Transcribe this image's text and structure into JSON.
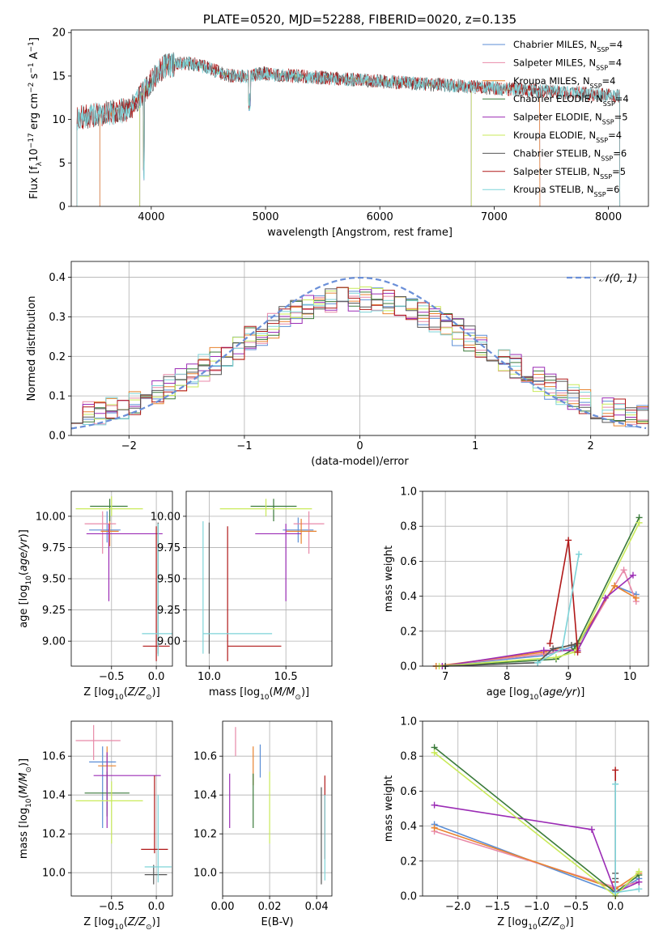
{
  "chart_data": [
    {
      "id": "spectrum",
      "type": "line",
      "title": "PLATE=0520, MJD=52288, FIBERID=0020, z=0.135",
      "xlabel": "wavelength [Angstrom, rest frame]",
      "ylabel": "Flux [f_λ 10^-17 erg cm^-2 s^-1 A^-1]",
      "xlim": [
        3300,
        8350
      ],
      "ylim": [
        0,
        20.3
      ],
      "xticks": [
        4000,
        5000,
        6000,
        7000,
        8000
      ],
      "yticks": [
        0,
        5,
        10,
        15,
        20
      ],
      "legend_position": "upper right",
      "grid": false,
      "series": [
        {
          "name": "Chabrier MILES, N_SSP=4",
          "color": "#5b8ed6",
          "seed": 11,
          "x_range": [
            3550,
            7400
          ]
        },
        {
          "name": "Salpeter MILES, N_SSP=4",
          "color": "#e889a8",
          "seed": 12,
          "x_range": [
            3550,
            7400
          ]
        },
        {
          "name": "Kroupa MILES, N_SSP=4",
          "color": "#e8832e",
          "seed": 13,
          "x_range": [
            3550,
            7400
          ]
        },
        {
          "name": "Chabrier ELODIE, N_SSP=4",
          "color": "#3a7a3a",
          "seed": 14,
          "x_range": [
            3900,
            6800
          ]
        },
        {
          "name": "Salpeter ELODIE, N_SSP=5",
          "color": "#9b2cb5",
          "seed": 15,
          "x_range": [
            3900,
            6800
          ]
        },
        {
          "name": "Kroupa ELODIE, N_SSP=4",
          "color": "#c9ea5a",
          "seed": 16,
          "x_range": [
            3900,
            6800
          ]
        },
        {
          "name": "Chabrier STELIB, N_SSP=6",
          "color": "#555555",
          "seed": 17,
          "x_range": [
            3350,
            8100
          ]
        },
        {
          "name": "Salpeter STELIB, N_SSP=5",
          "color": "#b01818",
          "seed": 18,
          "x_range": [
            3350,
            8100
          ]
        },
        {
          "name": "Kroupa STELIB, N_SSP=6",
          "color": "#7dd3d8",
          "seed": 19,
          "x_range": [
            3350,
            8100
          ]
        }
      ]
    },
    {
      "id": "residuals",
      "type": "histogram",
      "xlabel": "(data-model)/error",
      "ylabel": "Normed distribution",
      "xlim": [
        -2.5,
        2.5
      ],
      "ylim": [
        0,
        0.44
      ],
      "xticks": [
        -2,
        -1,
        0,
        1,
        2
      ],
      "yticks": [
        0.0,
        0.1,
        0.2,
        0.3,
        0.4
      ],
      "grid": true,
      "bin_width": 0.1,
      "legend": [
        {
          "name": "𝒩(0, 1)",
          "color": "#6a8fd8",
          "style": "dashed"
        }
      ],
      "series_colors": [
        "#5b8ed6",
        "#e889a8",
        "#e8832e",
        "#3a7a3a",
        "#9b2cb5",
        "#c9ea5a",
        "#7dd3d8",
        "#b01818",
        "#555555"
      ]
    },
    {
      "id": "age_vs_Z",
      "type": "errorbar",
      "xlabel": "Z [log10(Z/Z⊙)]",
      "ylabel": "age  [log10(age/yr)]",
      "xlim": [
        -0.95,
        0.18
      ],
      "ylim": [
        8.8,
        10.2
      ],
      "xticks": [
        -0.5,
        0.0
      ],
      "yticks": [
        9.0,
        9.25,
        9.5,
        9.75,
        10.0
      ],
      "grid": true,
      "points": [
        {
          "color": "#5b8ed6",
          "x": -0.55,
          "xerr": [
            0.2,
            0.15
          ],
          "y": 9.89,
          "yerr": [
            0.1,
            0.15
          ]
        },
        {
          "color": "#e889a8",
          "x": -0.6,
          "xerr": [
            0.2,
            0.15
          ],
          "y": 9.94,
          "yerr": [
            0.24,
            0.1
          ]
        },
        {
          "color": "#e8832e",
          "x": -0.52,
          "xerr": [
            0.1,
            0.1
          ],
          "y": 9.88,
          "yerr": [
            0.12,
            0.12
          ]
        },
        {
          "color": "#3a7a3a",
          "x": -0.52,
          "xerr": [
            0.22,
            0.2
          ],
          "y": 10.08,
          "yerr": [
            0.12,
            0.06
          ]
        },
        {
          "color": "#9b2cb5",
          "x": -0.53,
          "xerr": [
            0.25,
            0.6
          ],
          "y": 9.86,
          "yerr": [
            0.54,
            0.08
          ]
        },
        {
          "color": "#c9ea5a",
          "x": -0.5,
          "xerr": [
            0.4,
            0.35
          ],
          "y": 10.06,
          "yerr": [
            0.06,
            0.1
          ]
        },
        {
          "color": "#555555",
          "x": 0.02,
          "xerr": [
            0.0,
            0.0
          ],
          "y": 9.85,
          "yerr": [
            0.95,
            0.1
          ]
        },
        {
          "color": "#b01818",
          "x": 0.0,
          "xerr": [
            0.15,
            0.15
          ],
          "y": 8.96,
          "yerr": [
            0.12,
            0.96
          ]
        },
        {
          "color": "#7dd3d8",
          "x": 0.02,
          "xerr": [
            0.18,
            0.16
          ],
          "y": 9.06,
          "yerr": [
            0.18,
            0.88
          ]
        }
      ]
    },
    {
      "id": "age_vs_mass",
      "type": "errorbar",
      "xlabel": "mass [log10(M/M⊙)]",
      "ylabel": "",
      "xlim": [
        9.85,
        10.8
      ],
      "ylim": [
        8.8,
        10.2
      ],
      "xticks": [
        10.0,
        10.5
      ],
      "yticks": [
        9.0,
        9.25,
        9.5,
        9.75,
        10.0
      ],
      "grid": true,
      "points": [
        {
          "color": "#5b8ed6",
          "x": 10.58,
          "xerr": [
            0.1,
            0.1
          ],
          "y": 9.89,
          "yerr": [
            0.1,
            0.1
          ]
        },
        {
          "color": "#e889a8",
          "x": 10.65,
          "xerr": [
            0.1,
            0.1
          ],
          "y": 9.94,
          "yerr": [
            0.24,
            0.1
          ]
        },
        {
          "color": "#e8832e",
          "x": 10.6,
          "xerr": [
            0.1,
            0.1
          ],
          "y": 9.88,
          "yerr": [
            0.1,
            0.1
          ]
        },
        {
          "color": "#3a7a3a",
          "x": 10.42,
          "xerr": [
            0.15,
            0.15
          ],
          "y": 10.08,
          "yerr": [
            0.12,
            0.06
          ]
        },
        {
          "color": "#9b2cb5",
          "x": 10.5,
          "xerr": [
            0.2,
            0.1
          ],
          "y": 9.86,
          "yerr": [
            0.54,
            0.08
          ]
        },
        {
          "color": "#c9ea5a",
          "x": 10.37,
          "xerr": [
            0.3,
            0.3
          ],
          "y": 10.06,
          "yerr": [
            0.06,
            0.08
          ]
        },
        {
          "color": "#555555",
          "x": 10.0,
          "xerr": [
            0.0,
            0.0
          ],
          "y": 9.95,
          "yerr": [
            1.05,
            0.0
          ]
        },
        {
          "color": "#b01818",
          "x": 10.12,
          "xerr": [
            0.0,
            0.35
          ],
          "y": 8.96,
          "yerr": [
            0.12,
            0.96
          ]
        },
        {
          "color": "#7dd3d8",
          "x": 9.96,
          "xerr": [
            0.0,
            0.45
          ],
          "y": 9.06,
          "yerr": [
            0.16,
            0.9
          ]
        }
      ]
    },
    {
      "id": "weight_vs_age",
      "type": "line",
      "xlabel": "age  [log10(age/yr)]",
      "ylabel": "mass weight",
      "xlim": [
        6.63,
        10.3
      ],
      "ylim": [
        0,
        1.0
      ],
      "xticks": [
        7,
        8,
        9,
        10
      ],
      "yticks": [
        0.0,
        0.2,
        0.4,
        0.6,
        0.8,
        1.0
      ],
      "grid": true,
      "series": [
        {
          "color": "#5b8ed6",
          "x": [
            6.85,
            8.6,
            9.15,
            9.75,
            10.1
          ],
          "y": [
            0.0,
            0.06,
            0.12,
            0.46,
            0.41
          ]
        },
        {
          "color": "#e889a8",
          "x": [
            6.85,
            8.6,
            9.15,
            9.9,
            10.1
          ],
          "y": [
            0.0,
            0.07,
            0.1,
            0.55,
            0.37
          ]
        },
        {
          "color": "#e8832e",
          "x": [
            6.85,
            8.6,
            9.15,
            9.75,
            10.1
          ],
          "y": [
            0.0,
            0.08,
            0.13,
            0.46,
            0.39
          ]
        },
        {
          "color": "#3a7a3a",
          "x": [
            7.0,
            8.8,
            9.1,
            10.15
          ],
          "y": [
            0.0,
            0.04,
            0.1,
            0.85
          ]
        },
        {
          "color": "#9b2cb5",
          "x": [
            6.95,
            8.6,
            9.15,
            9.6,
            10.05
          ],
          "y": [
            0.0,
            0.09,
            0.09,
            0.39,
            0.52
          ]
        },
        {
          "color": "#c9ea5a",
          "x": [
            6.9,
            8.8,
            9.1,
            10.15
          ],
          "y": [
            0.0,
            0.05,
            0.08,
            0.82
          ]
        },
        {
          "color": "#555555",
          "x": [
            7.0,
            8.5,
            8.75,
            9.05,
            9.15
          ],
          "y": [
            0.0,
            0.02,
            0.1,
            0.12,
            0.13
          ]
        },
        {
          "color": "#b01818",
          "x": [
            8.7,
            9.0,
            9.15
          ],
          "y": [
            0.13,
            0.72,
            0.08
          ]
        },
        {
          "color": "#7dd3d8",
          "x": [
            8.5,
            8.9,
            9.17
          ],
          "y": [
            0.02,
            0.1,
            0.64
          ]
        }
      ]
    },
    {
      "id": "mass_vs_Z",
      "type": "errorbar",
      "xlabel": "Z [log10(Z/Z⊙)]",
      "ylabel": "mass [log10(M/M⊙)]",
      "xlim": [
        -0.95,
        0.18
      ],
      "ylim": [
        9.88,
        10.78
      ],
      "xticks": [
        -0.5,
        0.0
      ],
      "yticks": [
        10.0,
        10.2,
        10.4,
        10.6
      ],
      "grid": true,
      "points": [
        {
          "color": "#5b8ed6",
          "x": -0.6,
          "xerr": [
            0.15,
            0.15
          ],
          "y": 10.57,
          "yerr": [
            0.34,
            0.08
          ]
        },
        {
          "color": "#e889a8",
          "x": -0.7,
          "xerr": [
            0.2,
            0.3
          ],
          "y": 10.68,
          "yerr": [
            0.1,
            0.08
          ]
        },
        {
          "color": "#e8832e",
          "x": -0.55,
          "xerr": [
            0.1,
            0.1
          ],
          "y": 10.55,
          "yerr": [
            0.12,
            0.1
          ]
        },
        {
          "color": "#3a7a3a",
          "x": -0.55,
          "xerr": [
            0.25,
            0.25
          ],
          "y": 10.41,
          "yerr": [
            0.12,
            0.11
          ]
        },
        {
          "color": "#9b2cb5",
          "x": -0.55,
          "xerr": [
            0.15,
            0.6
          ],
          "y": 10.5,
          "yerr": [
            0.27,
            0.12
          ]
        },
        {
          "color": "#c9ea5a",
          "x": -0.5,
          "xerr": [
            0.4,
            0.35
          ],
          "y": 10.37,
          "yerr": [
            0.22,
            0.1
          ]
        },
        {
          "color": "#555555",
          "x": -0.03,
          "xerr": [
            0.1,
            0.15
          ],
          "y": 9.99,
          "yerr": [
            0.05,
            0.05
          ]
        },
        {
          "color": "#b01818",
          "x": -0.02,
          "xerr": [
            0.15,
            0.15
          ],
          "y": 10.12,
          "yerr": [
            0.02,
            0.38
          ]
        },
        {
          "color": "#7dd3d8",
          "x": 0.02,
          "xerr": [
            0.15,
            0.15
          ],
          "y": 10.03,
          "yerr": [
            0.08,
            0.37
          ]
        }
      ]
    },
    {
      "id": "mass_vs_ebv",
      "type": "errorbar",
      "xlabel": "E(B-V)",
      "ylabel": "",
      "xlim": [
        0.0,
        0.0465
      ],
      "ylim": [
        9.88,
        10.78
      ],
      "xticks": [
        0.0,
        0.02,
        0.04
      ],
      "yticks": [
        10.0,
        10.2,
        10.4,
        10.6
      ],
      "grid": true,
      "points": [
        {
          "color": "#5b8ed6",
          "x": 0.016,
          "xerr": [
            0,
            0
          ],
          "y": 10.57,
          "yerr": [
            0.08,
            0.09
          ]
        },
        {
          "color": "#e889a8",
          "x": 0.0055,
          "xerr": [
            0,
            0
          ],
          "y": 10.67,
          "yerr": [
            0.07,
            0.08
          ]
        },
        {
          "color": "#e8832e",
          "x": 0.013,
          "xerr": [
            0,
            0
          ],
          "y": 10.55,
          "yerr": [
            0.1,
            0.1
          ]
        },
        {
          "color": "#3a7a3a",
          "x": 0.013,
          "xerr": [
            0,
            0
          ],
          "y": 10.41,
          "yerr": [
            0.18,
            0.1
          ]
        },
        {
          "color": "#9b2cb5",
          "x": 0.003,
          "xerr": [
            0,
            0
          ],
          "y": 10.38,
          "yerr": [
            0.15,
            0.13
          ]
        },
        {
          "color": "#c9ea5a",
          "x": 0.02,
          "xerr": [
            0,
            0
          ],
          "y": 10.37,
          "yerr": [
            0.22,
            0.15
          ]
        },
        {
          "color": "#555555",
          "x": 0.042,
          "xerr": [
            0,
            0
          ],
          "y": 10.22,
          "yerr": [
            0.28,
            0.22
          ]
        },
        {
          "color": "#b01818",
          "x": 0.0435,
          "xerr": [
            0,
            0
          ],
          "y": 10.32,
          "yerr": [
            0.25,
            0.18
          ]
        },
        {
          "color": "#7dd3d8",
          "x": 0.0435,
          "xerr": [
            0,
            0
          ],
          "y": 10.18,
          "yerr": [
            0.22,
            0.22
          ]
        }
      ]
    },
    {
      "id": "weight_vs_Z",
      "type": "line",
      "xlabel": "Z [log10(Z/Z⊙)]",
      "ylabel": "mass weight",
      "xlim": [
        -2.45,
        0.42
      ],
      "ylim": [
        0,
        1.0
      ],
      "xticks": [
        -2.0,
        -1.5,
        -1.0,
        -0.5,
        0.0
      ],
      "yticks": [
        0.0,
        0.2,
        0.4,
        0.6,
        0.8,
        1.0
      ],
      "grid": true,
      "series": [
        {
          "color": "#5b8ed6",
          "x": [
            -2.3,
            0.0,
            0.3
          ],
          "y": [
            0.41,
            0.02,
            0.1
          ]
        },
        {
          "color": "#e889a8",
          "x": [
            -2.3,
            0.0,
            0.3
          ],
          "y": [
            0.37,
            0.05,
            0.08
          ]
        },
        {
          "color": "#e8832e",
          "x": [
            -2.3,
            0.0,
            0.3
          ],
          "y": [
            0.39,
            0.04,
            0.13
          ]
        },
        {
          "color": "#3a7a3a",
          "x": [
            -2.3,
            0.0,
            0.3
          ],
          "y": [
            0.85,
            0.02,
            0.12
          ]
        },
        {
          "color": "#9b2cb5",
          "x": [
            -2.3,
            -0.3,
            0.0,
            0.3
          ],
          "y": [
            0.52,
            0.38,
            0.02,
            0.08
          ]
        },
        {
          "color": "#c9ea5a",
          "x": [
            -2.3,
            0.0,
            0.3
          ],
          "y": [
            0.82,
            0.0,
            0.14
          ]
        },
        {
          "color": "#555555",
          "x": [
            0.0,
            0.0,
            0.0
          ],
          "y": [
            0.13,
            0.1,
            0.02
          ]
        },
        {
          "color": "#b01818",
          "x": [
            0.0,
            0.0
          ],
          "y": [
            0.72,
            0.08
          ]
        },
        {
          "color": "#7dd3d8",
          "x": [
            0.0,
            0.0,
            0.3
          ],
          "y": [
            0.64,
            0.02,
            0.04
          ]
        }
      ]
    }
  ]
}
